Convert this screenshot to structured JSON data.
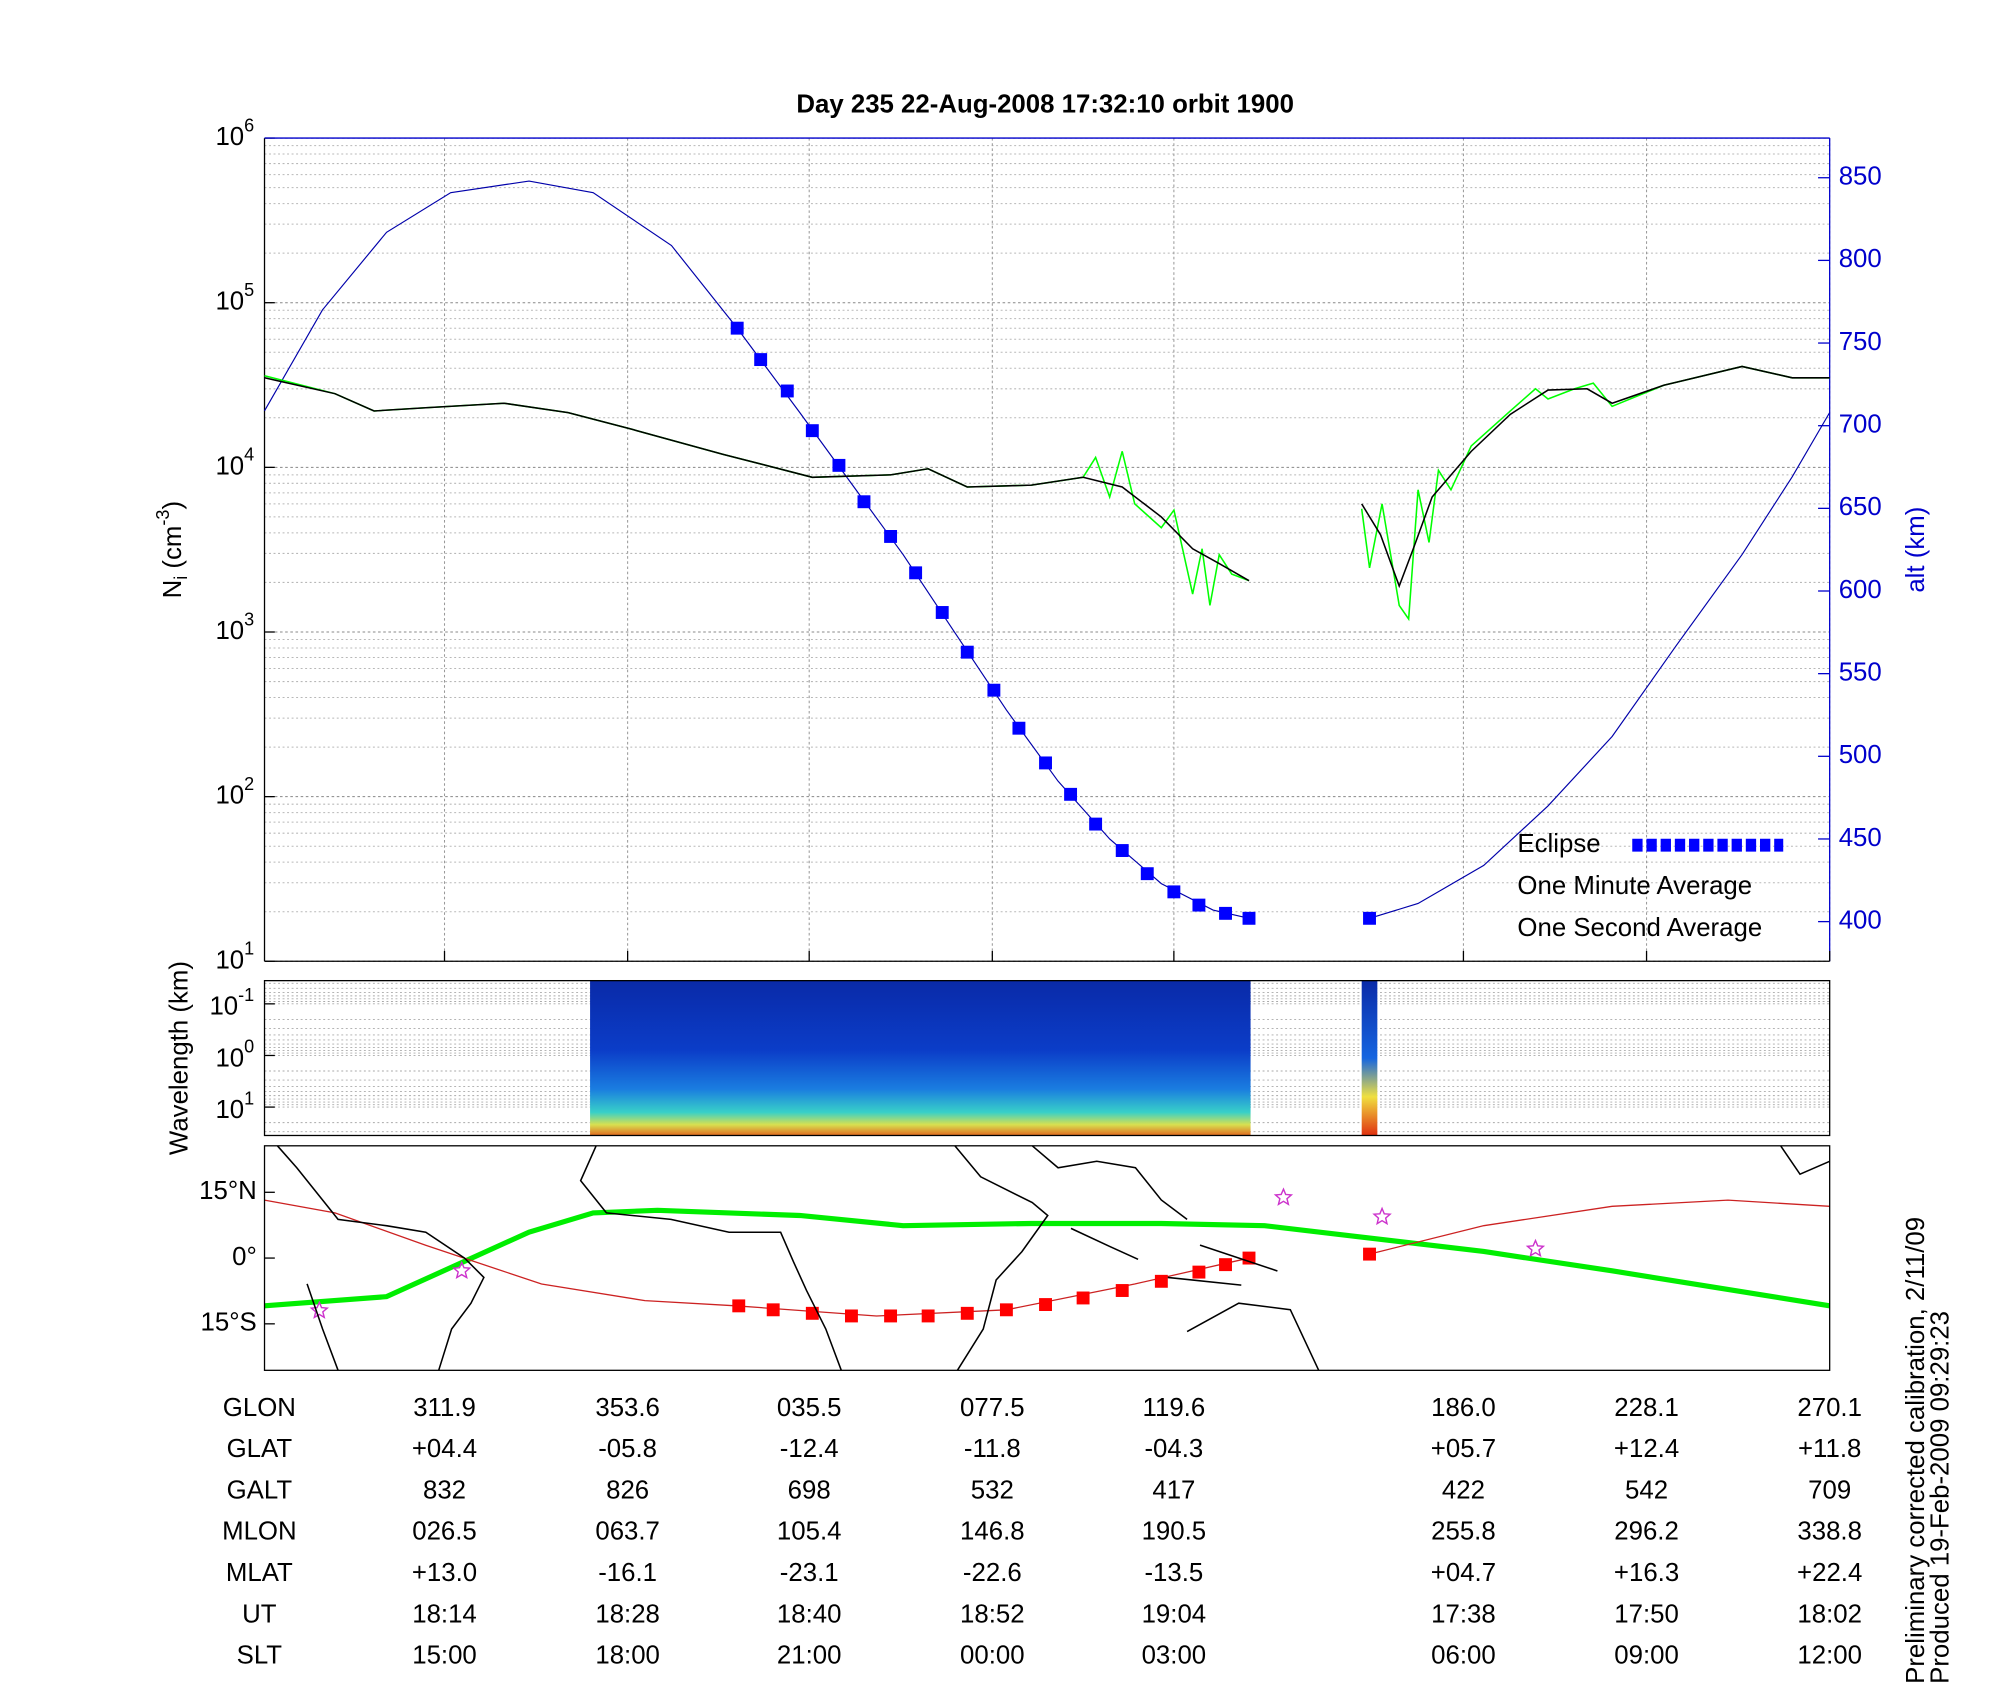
{
  "chart_data": [
    {
      "type": "line",
      "title": "Day 235  22-Aug-2008 17:32:10   orbit 1900",
      "ylabel": [
        "N",
        "i",
        " (cm",
        "-3",
        ")"
      ],
      "y2label": "alt (km)",
      "xlim": [
        0,
        100
      ],
      "xticks": [
        11.5,
        23.2,
        34.8,
        46.5,
        58.1,
        76.6,
        88.3,
        100
      ],
      "ylim": [
        10,
        1000000
      ],
      "log_y": true,
      "yticks": [
        {
          "value": 10,
          "base": "10",
          "exp": "1"
        },
        {
          "value": 100,
          "base": "10",
          "exp": "2"
        },
        {
          "value": 1000,
          "base": "10",
          "exp": "3"
        },
        {
          "value": 10000,
          "base": "10",
          "exp": "4"
        },
        {
          "value": 100000,
          "base": "10",
          "exp": "5"
        },
        {
          "value": 1000000,
          "base": "10",
          "exp": "6"
        }
      ],
      "y2lim": [
        376,
        874
      ],
      "y2ticks": [
        400,
        450,
        500,
        550,
        600,
        650,
        700,
        750,
        800,
        850
      ],
      "grid": true,
      "legend": "lower right",
      "series": [
        {
          "name": "Eclipse",
          "color": "#0000ff",
          "marker": "square",
          "axis": "y2",
          "x": [
            30.2,
            31.7,
            33.4,
            35.0,
            36.7,
            38.3,
            40.0,
            41.6,
            43.3,
            44.9,
            46.6,
            48.2,
            49.9,
            51.5,
            53.1,
            54.8,
            56.4,
            58.1,
            59.7,
            61.4,
            62.9,
            70.6
          ],
          "values": [
            759,
            740,
            721,
            697,
            676,
            654,
            633,
            611,
            587,
            563,
            540,
            517,
            496,
            477,
            459,
            443,
            429,
            418,
            410,
            405,
            402,
            402
          ]
        },
        {
          "name": "One Minute Average",
          "color": "#000000",
          "x": [
            0,
            4.5,
            7.0,
            10.3,
            15.3,
            19.4,
            23.5,
            29.3,
            35.0,
            40.0,
            42.4,
            44.9,
            49.0,
            52.3,
            54.8,
            57.3,
            59.3,
            61.0,
            62.9,
            null,
            70.1,
            71.3,
            72.5,
            73.4,
            74.6,
            77.1,
            79.6,
            82.0,
            84.5,
            86.1,
            89.4,
            94.4,
            97.6,
            100
          ],
          "values": [
            35000,
            28000,
            22000,
            23000,
            24500,
            21500,
            17000,
            12000,
            8700,
            9000,
            9800,
            7600,
            7800,
            8700,
            7600,
            5000,
            3200,
            2600,
            2050,
            null,
            6000,
            3900,
            1900,
            3200,
            6600,
            12500,
            21000,
            29500,
            30000,
            24500,
            31500,
            41000,
            35000,
            35000
          ]
        },
        {
          "name": "One Second Average",
          "color": "#00ff00",
          "x": [
            0,
            4.5,
            7.0,
            10.3,
            15.3,
            19.4,
            23.5,
            29.3,
            35.0,
            40.0,
            42.4,
            44.9,
            49.0,
            52.3,
            53.1,
            54.0,
            54.8,
            55.6,
            57.3,
            58.1,
            59.3,
            59.9,
            60.4,
            61.0,
            61.8,
            62.9,
            null,
            70.1,
            70.6,
            71.4,
            72.5,
            73.1,
            73.7,
            74.4,
            75.0,
            75.8,
            77.1,
            79.6,
            81.2,
            82.0,
            83.7,
            84.9,
            86.1,
            89.4,
            94.4,
            97.6,
            100
          ],
          "values": [
            36000,
            28000,
            22000,
            23000,
            24500,
            21500,
            17000,
            12000,
            8700,
            9000,
            9800,
            7600,
            7800,
            8700,
            11500,
            6600,
            12500,
            6000,
            4300,
            5500,
            1700,
            3200,
            1450,
            2950,
            2250,
            2050,
            null,
            5600,
            2450,
            6000,
            1450,
            1200,
            7300,
            3500,
            9600,
            7300,
            13500,
            22000,
            30000,
            26000,
            30000,
            32500,
            23500,
            31500,
            41000,
            35000,
            35000
          ]
        },
        {
          "color": "#0000aa",
          "axis": "y2",
          "x": [
            0,
            3.7,
            7.8,
            11.9,
            16.9,
            21.0,
            26.0,
            30.2,
            34.2,
            37.5,
            40.8,
            44.1,
            47.4,
            50.7,
            54.0,
            57.3,
            60.6,
            62.9,
            null,
            70.6,
            73.7,
            77.9,
            82.0,
            86.1,
            90.2,
            94.4,
            97.6,
            100
          ],
          "values": [
            709,
            770,
            817,
            841,
            848,
            841,
            809,
            759,
            708,
            665,
            622,
            575,
            528,
            485,
            450,
            423,
            407,
            402,
            null,
            402,
            411,
            434,
            470,
            512,
            567,
            622,
            669,
            708
          ]
        }
      ]
    },
    {
      "type": "spectrogram",
      "ylabel": "Wavelength (km)",
      "xlim": [
        0,
        100
      ],
      "ylim": [
        0.0355,
        35.5
      ],
      "log_y": true,
      "inverted_y": true,
      "yticks": [
        {
          "value": 0.1,
          "base": "10",
          "exp": "-1"
        },
        {
          "value": 1,
          "base": "10",
          "exp": "0"
        },
        {
          "value": 10,
          "base": "10",
          "exp": "1"
        }
      ],
      "blocks": [
        {
          "x": [
            20.8,
            63.0
          ]
        },
        {
          "x": [
            70.1,
            71.1
          ]
        }
      ]
    },
    {
      "type": "map",
      "xlim": [
        0,
        100
      ],
      "ylim": [
        -25.6,
        25.6
      ],
      "yticks": [
        {
          "value": 15,
          "label": "15°N"
        },
        {
          "value": 0,
          "label": "0°"
        },
        {
          "value": -15,
          "label": "15°S"
        }
      ],
      "series": [
        {
          "color": "#00ee00",
          "x": [
            0,
            7.8,
            16.9,
            21.0,
            25.1,
            34.2,
            40.8,
            49.0,
            57.3,
            63.9,
            69.6,
            77.9,
            86.1,
            100
          ],
          "values": [
            -10.9,
            -8.8,
            5.9,
            10.3,
            10.9,
            9.7,
            7.4,
            7.9,
            7.9,
            7.4,
            5.0,
            1.5,
            -2.9,
            -10.9
          ]
        },
        {
          "color": "#cc2222",
          "x": [
            0,
            4.5,
            10.3,
            17.7,
            24.3,
            30.1,
            39.1,
            47.4,
            55.6,
            62.9,
            null,
            70.6,
            77.9,
            86.1,
            93.5,
            100
          ],
          "values": [
            13.2,
            10.3,
            2.9,
            -5.9,
            -9.7,
            -10.9,
            -13.2,
            -11.8,
            -5.9,
            0,
            null,
            0.9,
            7.4,
            11.8,
            13.2,
            11.8
          ]
        },
        {
          "color": "#ff0000",
          "marker": "square",
          "x": [
            30.3,
            32.5,
            35.0,
            37.5,
            40.0,
            42.4,
            44.9,
            47.4,
            49.9,
            52.3,
            54.8,
            57.3,
            59.7,
            61.4,
            62.9,
            70.6
          ],
          "values": [
            -10.9,
            -11.8,
            -12.6,
            -13.2,
            -13.2,
            -13.2,
            -12.6,
            -11.8,
            -10.6,
            -9.1,
            -7.4,
            -5.3,
            -3.2,
            -1.5,
            0,
            0.9
          ]
        },
        {
          "color": "#cc33cc",
          "marker": "star",
          "x": [
            3.5,
            12.6,
            65.1,
            71.4,
            81.2
          ],
          "values": [
            -12,
            -2.9,
            13.8,
            9.4,
            2.1
          ]
        }
      ]
    }
  ],
  "table": {
    "rows": [
      {
        "label": "GLON",
        "values": [
          "311.9",
          "353.6",
          "035.5",
          "077.5",
          "119.6",
          "186.0",
          "228.1",
          "270.1"
        ]
      },
      {
        "label": "GLAT",
        "values": [
          "+04.4",
          "-05.8",
          "-12.4",
          "-11.8",
          "-04.3",
          "+05.7",
          "+12.4",
          "+11.8"
        ]
      },
      {
        "label": "GALT",
        "values": [
          "832",
          "826",
          "698",
          "532",
          "417",
          "422",
          "542",
          "709"
        ]
      },
      {
        "label": "MLON",
        "values": [
          "026.5",
          "063.7",
          "105.4",
          "146.8",
          "190.5",
          "255.8",
          "296.2",
          "338.8"
        ]
      },
      {
        "label": "MLAT",
        "values": [
          "+13.0",
          "-16.1",
          "-23.1",
          "-22.6",
          "-13.5",
          "+04.7",
          "+16.3",
          "+22.4"
        ]
      },
      {
        "label": "UT",
        "values": [
          "18:14",
          "18:28",
          "18:40",
          "18:52",
          "19:04",
          "17:38",
          "17:50",
          "18:02"
        ]
      },
      {
        "label": "SLT",
        "values": [
          "15:00",
          "18:00",
          "21:00",
          "00:00",
          "03:00",
          "06:00",
          "09:00",
          "12:00"
        ]
      }
    ]
  },
  "notes": [
    "Preliminary corrected calibration, 2/11/09",
    "Produced 19-Feb-2009 09:29:23"
  ]
}
